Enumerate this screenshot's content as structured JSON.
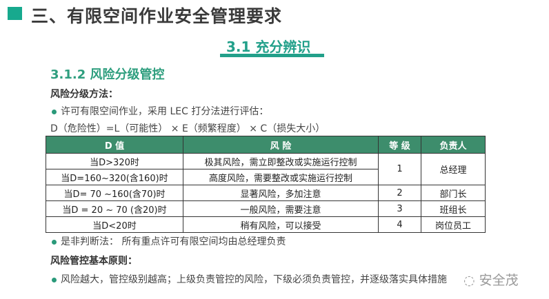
{
  "title": "三、有限空间作业安全管理要求",
  "section": "3.1  充分辨识",
  "subsection": "3.1.2   风险分级管控",
  "method_heading": "风险分级方法：",
  "bullet1": "许可有限空间作业，采用  LEC  打分法进行评估：",
  "formula": "D（危险性）=L（可能性） ×  E（频繁程度）   × C（损失大小）",
  "table": {
    "headers": [
      "D 值",
      "风  险",
      "等  级",
      "负责人"
    ],
    "rows": [
      {
        "d": "当D>320时",
        "risk": "极其风险，需立即整改或实施运行控制",
        "level": "1",
        "owner": "总经理"
      },
      {
        "d": "当D=160~320(含160)时",
        "risk": "高度风险，需要整改或实施运行控制"
      },
      {
        "d": "当D= 70 ~160(含70)时",
        "risk": "显著风险，多加注意",
        "level": "2",
        "owner": "部门长"
      },
      {
        "d": "当D = 20 ~ 70  (含20)时",
        "risk": "一般风险，需要注意",
        "level": "3",
        "owner": "班组长"
      },
      {
        "d": "当D<20时",
        "risk": "稍有风险，可以接受",
        "level": "4",
        "owner": "岗位员工"
      }
    ]
  },
  "bullet2": "是非判断法：   所有重点许可有限空间均由总经理负责",
  "principle_heading": "风险管控基本原则：",
  "bullet3": "风险越大，管控级别越高；上级负责管控的风险，下级必须负责管控，并逐级落实具体措施",
  "watermark": "安全茂",
  "colors": {
    "accent": "#22a08a",
    "table_header": "#3d8d6c"
  }
}
